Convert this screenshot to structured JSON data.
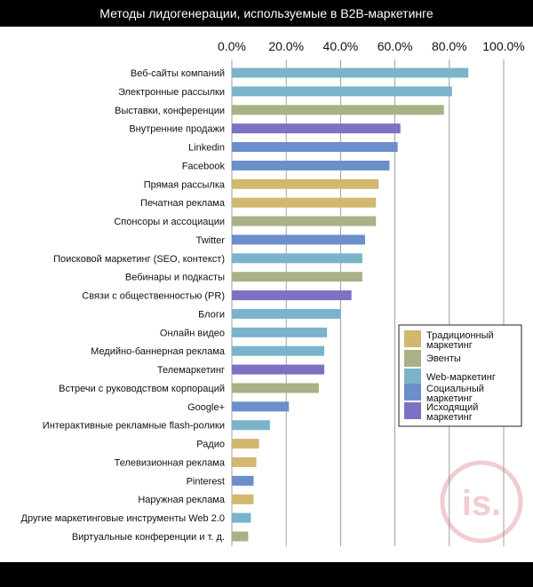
{
  "title": "Методы лидогенерации, используемые в B2B-маркетинге",
  "watermark": {
    "text": "is.",
    "color": "#f1ccd0"
  },
  "colors": {
    "traditional": "#d1b86e",
    "events": "#a8b286",
    "web": "#7ab4cb",
    "social": "#6a8fca",
    "outbound": "#7b72c2",
    "grid": "#8a8a8a"
  },
  "chart_data": {
    "type": "bar",
    "orientation": "horizontal",
    "title": "Методы лидогенерации, используемые в B2B-маркетинге",
    "xlim": [
      0,
      100
    ],
    "x_ticks": [
      "0.0%",
      "20.0%",
      "40.0%",
      "60.0%",
      "80.0%",
      "100.0%"
    ],
    "x_tick_values": [
      0,
      20,
      40,
      60,
      80,
      100
    ],
    "grid": true,
    "legend_position": "right",
    "categories": [
      "Веб-сайты компаний",
      "Электронные рассылки",
      "Выставки, конференции",
      "Внутренние продажи",
      "Linkedin",
      "Facebook",
      "Прямая рассылка",
      "Печатная реклама",
      "Спонсоры и ассоциации",
      "Twitter",
      "Поисковой маркетинг (SEO, контекст)",
      "Вебинары и подкасты",
      "Связи с общественностью (PR)",
      "Блоги",
      "Онлайн видео",
      "Медийно-баннерная реклама",
      "Телемаркетинг",
      "Встречи с руководством корпораций",
      "Google+",
      "Интерактивные рекламные flash-ролики",
      "Радио",
      "Телевизионная реклама",
      "Pinterest",
      "Наружная реклама",
      "Другие маркетинговые инструменты Web 2.0",
      "Виртуальные конференции и т. д."
    ],
    "values": [
      87,
      81,
      78,
      62,
      61,
      58,
      54,
      53,
      53,
      49,
      48,
      48,
      44,
      40,
      35,
      34,
      34,
      32,
      21,
      14,
      10,
      9,
      8,
      8,
      7,
      6
    ],
    "groups": [
      "web",
      "web",
      "events",
      "outbound",
      "social",
      "social",
      "traditional",
      "traditional",
      "events",
      "social",
      "web",
      "events",
      "outbound",
      "web",
      "web",
      "web",
      "outbound",
      "events",
      "social",
      "web",
      "traditional",
      "traditional",
      "social",
      "traditional",
      "web",
      "events"
    ],
    "legend": [
      {
        "key": "traditional",
        "label_lines": [
          "Традиционный",
          "маркетинг"
        ]
      },
      {
        "key": "events",
        "label_lines": [
          "Эвенты"
        ]
      },
      {
        "key": "web",
        "label_lines": [
          "Web-маркетинг"
        ]
      },
      {
        "key": "social",
        "label_lines": [
          "Социальный",
          "маркетинг"
        ]
      },
      {
        "key": "outbound",
        "label_lines": [
          "Исходящий",
          "маркетинг"
        ]
      }
    ]
  }
}
